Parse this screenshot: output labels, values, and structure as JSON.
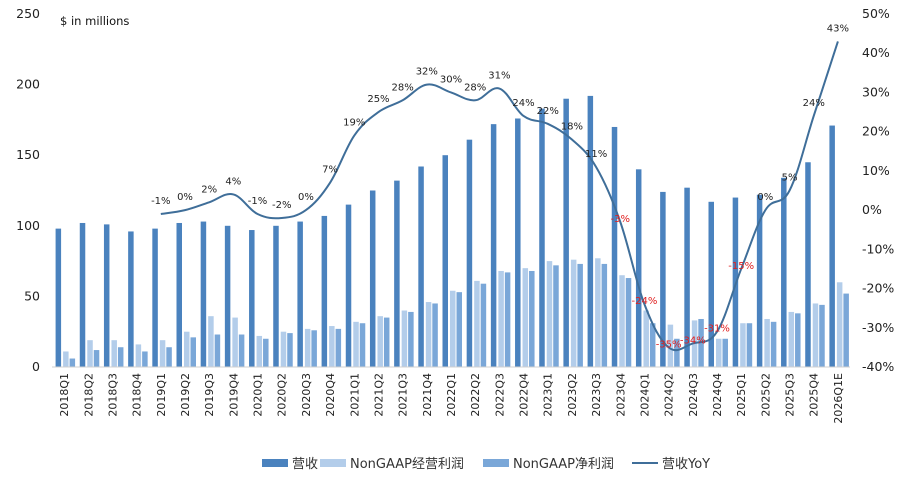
{
  "chart_data": {
    "type": "bar",
    "unit_note": "$ in millions",
    "categories": [
      "2018Q1",
      "2018Q2",
      "2018Q3",
      "2018Q4",
      "2019Q1",
      "2019Q2",
      "2019Q3",
      "2019Q4",
      "2020Q1",
      "2020Q2",
      "2020Q3",
      "2020Q4",
      "2021Q1",
      "2021Q2",
      "2021Q3",
      "2021Q4",
      "2022Q1",
      "2022Q2",
      "2022Q3",
      "2022Q4",
      "2023Q1",
      "2023Q2",
      "2023Q3",
      "2023Q4",
      "2024Q1",
      "2024Q2",
      "2024Q3",
      "2024Q4",
      "2025Q1",
      "2025Q2",
      "2025Q3",
      "2025Q4",
      "2026Q1E"
    ],
    "y_left": {
      "min": 0,
      "max": 250,
      "ticks": [
        0,
        50,
        100,
        150,
        200,
        250
      ]
    },
    "y_right": {
      "min": -40,
      "max": 50,
      "ticks": [
        "-40%",
        "-30%",
        "-20%",
        "-10%",
        "0%",
        "10%",
        "20%",
        "30%",
        "40%",
        "50%"
      ]
    },
    "series": [
      {
        "name": "营收",
        "kind": "bar",
        "color": "#4a82be",
        "values": [
          98,
          102,
          101,
          96,
          98,
          102,
          103,
          100,
          97,
          100,
          103,
          107,
          115,
          125,
          132,
          142,
          150,
          161,
          172,
          176,
          183,
          190,
          192,
          170,
          140,
          124,
          127,
          117,
          120,
          122,
          134,
          145,
          171
        ]
      },
      {
        "name": "NonGAAP经营利润",
        "kind": "bar",
        "color": "#b3cdea",
        "values": [
          11,
          19,
          19,
          16,
          19,
          25,
          36,
          35,
          22,
          25,
          27,
          29,
          32,
          36,
          40,
          46,
          54,
          61,
          68,
          70,
          75,
          76,
          77,
          65,
          40,
          30,
          33,
          20,
          31,
          34,
          39,
          45,
          60
        ]
      },
      {
        "name": "NonGAAP净利润",
        "kind": "bar",
        "color": "#7aa7d8",
        "values": [
          6,
          12,
          14,
          11,
          14,
          21,
          23,
          23,
          20,
          24,
          26,
          27,
          31,
          35,
          39,
          45,
          53,
          59,
          67,
          68,
          72,
          73,
          73,
          63,
          31,
          20,
          34,
          20,
          31,
          32,
          38,
          44,
          52
        ]
      },
      {
        "name": "营收YoY",
        "kind": "line",
        "color": "#3f6e99",
        "values": [
          null,
          null,
          null,
          null,
          -1,
          0,
          2,
          4,
          -1,
          -2,
          0,
          7,
          19,
          25,
          28,
          32,
          30,
          28,
          31,
          24,
          22,
          18,
          11,
          -3,
          -24,
          -35,
          -34,
          -31,
          -15,
          0,
          5,
          24,
          43
        ],
        "labels": [
          "",
          "",
          "",
          "",
          "-1%",
          "0%",
          "2%",
          "4%",
          "-1%",
          "-2%",
          "0%",
          "7%",
          "19%",
          "25%",
          "28%",
          "32%",
          "30%",
          "28%",
          "31%",
          "24%",
          "22%",
          "18%",
          "11%",
          "-3%",
          "-24%",
          "-35%",
          "-34%",
          "-31%",
          "-15%",
          "0%",
          "5%",
          "24%",
          "43%"
        ]
      }
    ],
    "legend_position": "bottom",
    "grid": false
  }
}
